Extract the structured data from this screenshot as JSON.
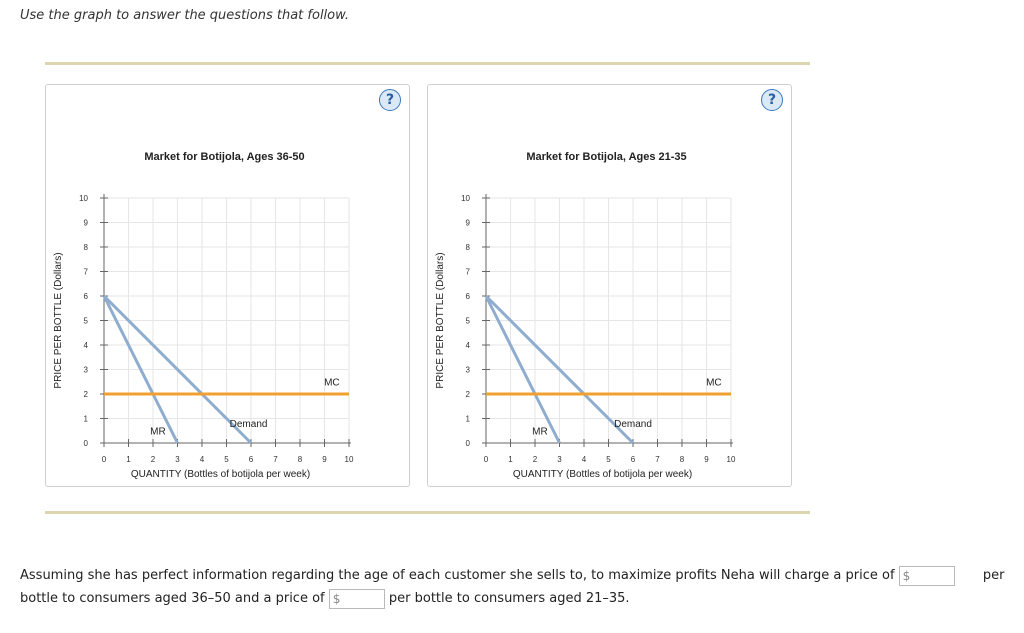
{
  "instructions": "Use the graph to answer the questions that follow.",
  "help_label": "?",
  "question": {
    "part1": "Assuming she has perfect information regarding the age of each customer she sells to, to maximize profits Neha will charge a price of",
    "part2": "per",
    "part3": "bottle to consumers aged 36–50 and a price of",
    "part4": "per bottle to consumers aged 21–35.",
    "currency": "$",
    "answer1": "",
    "answer2": ""
  },
  "colors": {
    "demand": "#8fadcf",
    "mr": "#8fadcf",
    "mc": "#f0a030",
    "grid": "#e6e6e6",
    "axis": "#666666"
  },
  "chart_data": [
    {
      "type": "line",
      "title": "Market for Botijola, Ages 36-50",
      "xlabel": "QUANTITY (Bottles of botijola per week)",
      "ylabel": "PRICE PER BOTTLE (Dollars)",
      "xlim": [
        0,
        10
      ],
      "ylim": [
        0,
        10
      ],
      "xticks": [
        0,
        1,
        2,
        3,
        4,
        5,
        6,
        7,
        8,
        9,
        10
      ],
      "yticks": [
        0,
        1,
        2,
        3,
        4,
        5,
        6,
        7,
        8,
        9,
        10
      ],
      "grid": true,
      "series": [
        {
          "name": "Demand",
          "color": "#8fadcf",
          "x": [
            0,
            6
          ],
          "y": [
            6,
            0
          ],
          "label_at": [
            5.9,
            0.65
          ]
        },
        {
          "name": "MR",
          "color": "#8fadcf",
          "x": [
            0,
            3
          ],
          "y": [
            6,
            0
          ],
          "label_at": [
            2.2,
            0.35
          ]
        },
        {
          "name": "MC",
          "color": "#f0a030",
          "x": [
            0,
            10
          ],
          "y": [
            2,
            2
          ],
          "label_at": [
            9.3,
            2.35
          ]
        }
      ]
    },
    {
      "type": "line",
      "title": "Market for Botijola, Ages 21-35",
      "xlabel": "QUANTITY (Bottles of botijola per week)",
      "ylabel": "PRICE PER BOTTLE (Dollars)",
      "xlim": [
        0,
        10
      ],
      "ylim": [
        0,
        10
      ],
      "xticks": [
        0,
        1,
        2,
        3,
        4,
        5,
        6,
        7,
        8,
        9,
        10
      ],
      "yticks": [
        0,
        1,
        2,
        3,
        4,
        5,
        6,
        7,
        8,
        9,
        10
      ],
      "grid": true,
      "series": [
        {
          "name": "Demand",
          "color": "#8fadcf",
          "x": [
            0,
            6
          ],
          "y": [
            6,
            0
          ],
          "label_at": [
            6.0,
            0.65
          ]
        },
        {
          "name": "MR",
          "color": "#8fadcf",
          "x": [
            0,
            3
          ],
          "y": [
            6,
            0
          ],
          "label_at": [
            2.2,
            0.35
          ]
        },
        {
          "name": "MC",
          "color": "#f0a030",
          "x": [
            0,
            10
          ],
          "y": [
            2,
            2
          ],
          "label_at": [
            9.3,
            2.35
          ]
        }
      ]
    }
  ]
}
